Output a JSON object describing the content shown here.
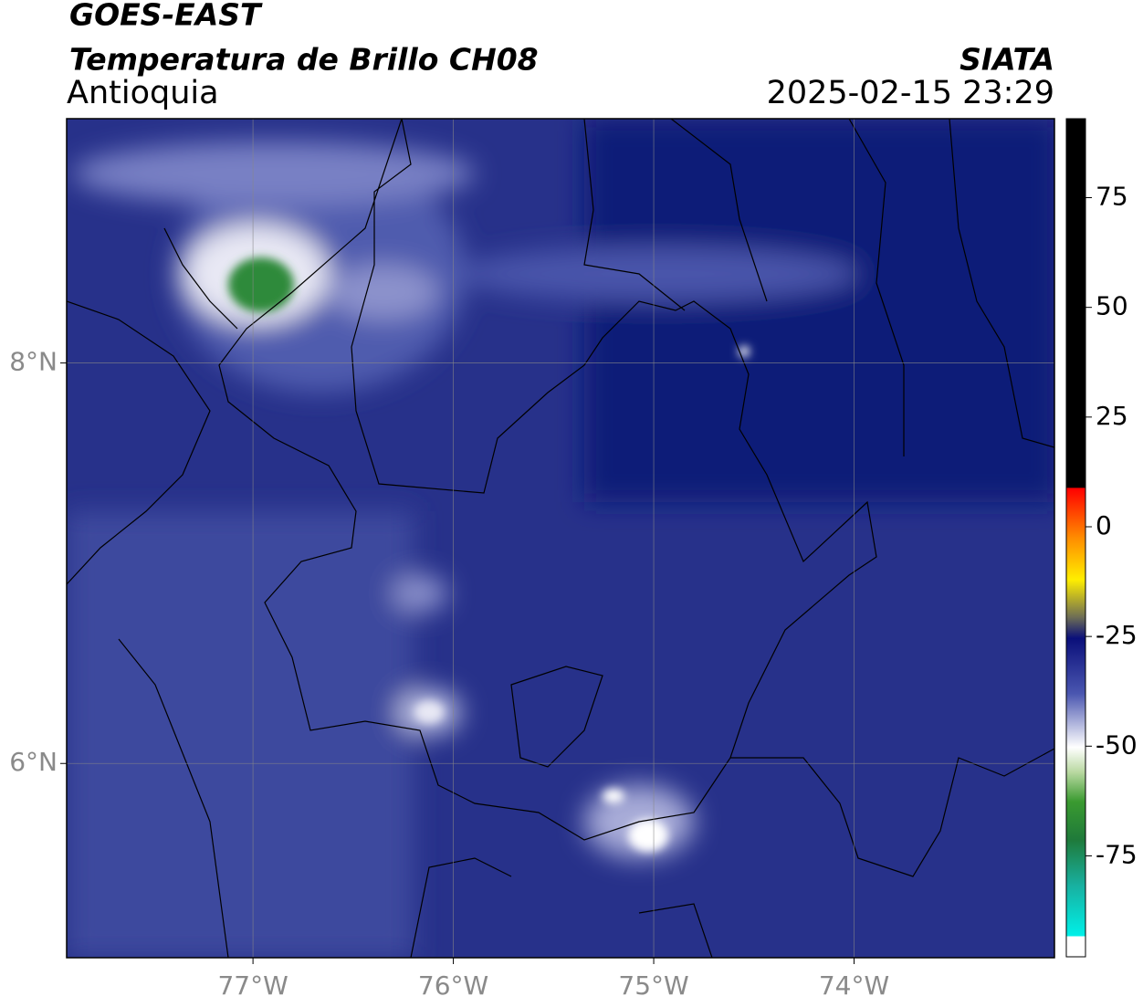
{
  "header": {
    "title": "GOES-EAST",
    "subtitle": "Temperatura de Brillo CH08",
    "region": "Antioquia",
    "source": "SIATA",
    "timestamp": "2025-02-15 23:29"
  },
  "map": {
    "xlim": [
      -77.93,
      -73.0
    ],
    "ylim": [
      5.03,
      9.22
    ],
    "xticks": [
      {
        "value": -77,
        "label": "77°W"
      },
      {
        "value": -76,
        "label": "76°W"
      },
      {
        "value": -75,
        "label": "75°W"
      },
      {
        "value": -74,
        "label": "74°W"
      }
    ],
    "yticks": [
      {
        "value": 8,
        "label": "8°N"
      },
      {
        "value": 6,
        "label": "6°N"
      }
    ],
    "grid": true
  },
  "colorbar": {
    "lim": [
      -98,
      93
    ],
    "ticks": [
      75,
      50,
      25,
      0,
      -25,
      -50,
      -75
    ]
  }
}
